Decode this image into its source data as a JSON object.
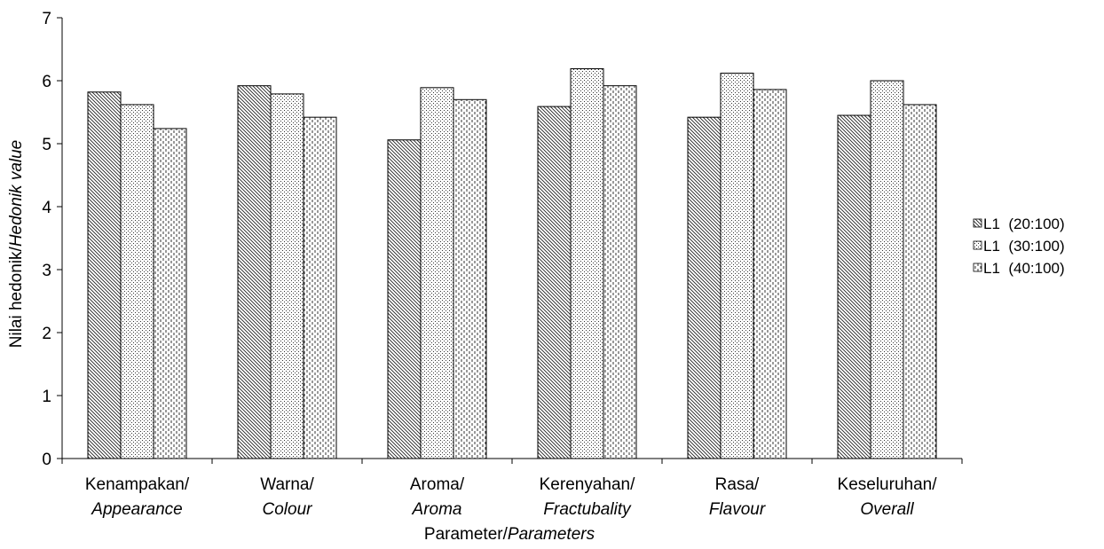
{
  "chart_data": {
    "type": "bar",
    "categories": [
      {
        "line1": "Kenampakan/",
        "line2": "Appearance"
      },
      {
        "line1": "Warna/",
        "line2": "Colour"
      },
      {
        "line1": "Aroma/",
        "line2": "Aroma"
      },
      {
        "line1": "Kerenyahan/",
        "line2": "Fractubality"
      },
      {
        "line1": "Rasa/",
        "line2": "Flavour"
      },
      {
        "line1": "Keseluruhan/",
        "line2": "Overall"
      }
    ],
    "series": [
      {
        "name": "L1  (20:100)",
        "pattern": "diagonal",
        "values": [
          5.82,
          5.92,
          5.06,
          5.59,
          5.42,
          5.45
        ]
      },
      {
        "name": "L1  (30:100)",
        "pattern": "dots",
        "values": [
          5.62,
          5.79,
          5.89,
          6.19,
          6.12,
          6.0
        ]
      },
      {
        "name": "L1  (40:100)",
        "pattern": "dashes",
        "values": [
          5.24,
          5.42,
          5.7,
          5.92,
          5.86,
          5.62
        ]
      }
    ],
    "ylabel": {
      "plain": "Nilai hedonik/",
      "italic": "Hedonik value"
    },
    "xlabel": {
      "plain": "Parameter/",
      "italic": "Parameters"
    },
    "ylim": [
      0,
      7
    ],
    "yticks": [
      0,
      1,
      2,
      3,
      4,
      5,
      6,
      7
    ],
    "grid": false,
    "legend_position": "right"
  }
}
